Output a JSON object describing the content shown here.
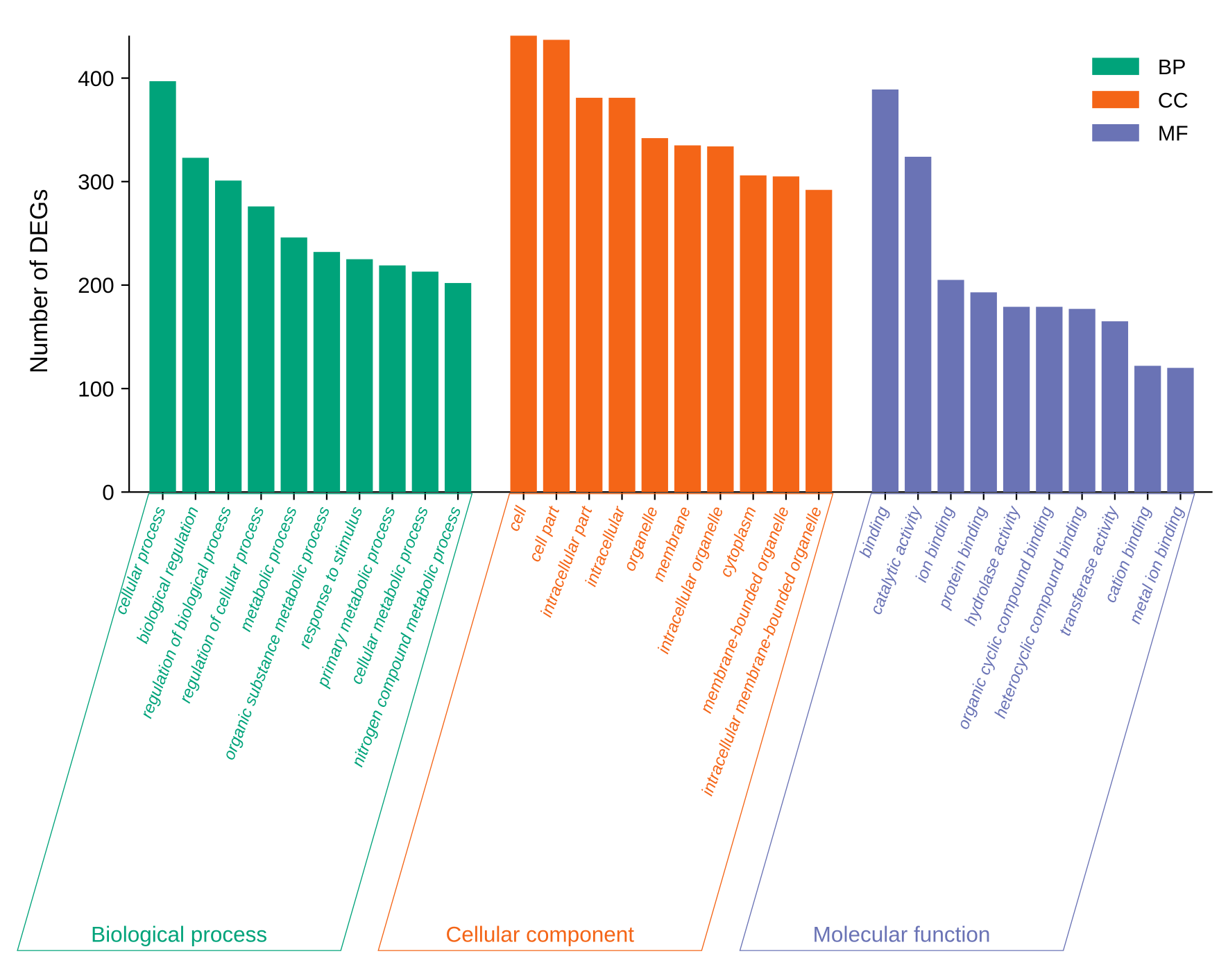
{
  "chart_data": {
    "type": "bar",
    "title": "",
    "xlabel": "",
    "ylabel": "Number of DEGs",
    "ylim": [
      0,
      441
    ],
    "yticks": [
      "0",
      "100",
      "200",
      "300",
      "400"
    ],
    "grid": false,
    "legend_position": "top-right",
    "legend": [
      "BP",
      "CC",
      "MF"
    ],
    "groups": [
      {
        "key": "BP",
        "name": "Biological process",
        "color": "#00A37A",
        "categories": [
          "cellular process",
          "biological regulation",
          "regulation of biological process",
          "regulation of cellular process",
          "metabolic process",
          "organic substance metabolic process",
          "response to stimulus",
          "primary metabolic process",
          "cellular metabolic process",
          "nitrogen compound metabolic process"
        ],
        "values": [
          397,
          323,
          301,
          276,
          246,
          232,
          225,
          219,
          213,
          202
        ]
      },
      {
        "key": "CC",
        "name": "Cellular component",
        "color": "#F46517",
        "categories": [
          "cell",
          "cell part",
          "intracellular part",
          "intracellular",
          "organelle",
          "membrane",
          "intracellular organelle",
          "cytoplasm",
          "membrane-bounded organelle",
          "intracellular membrane-bounded organelle"
        ],
        "values": [
          441,
          437,
          381,
          381,
          342,
          335,
          334,
          306,
          305,
          292
        ]
      },
      {
        "key": "MF",
        "name": "Molecular function",
        "color": "#6A73B5",
        "categories": [
          "binding",
          "catalytic activity",
          "ion binding",
          "protein binding",
          "hydrolase activity",
          "organic cyclic compound binding",
          "heterocyclic compound binding",
          "transferase activity",
          "cation binding",
          "metal ion binding"
        ],
        "values": [
          389,
          324,
          205,
          193,
          179,
          179,
          177,
          165,
          122,
          120
        ]
      }
    ]
  }
}
